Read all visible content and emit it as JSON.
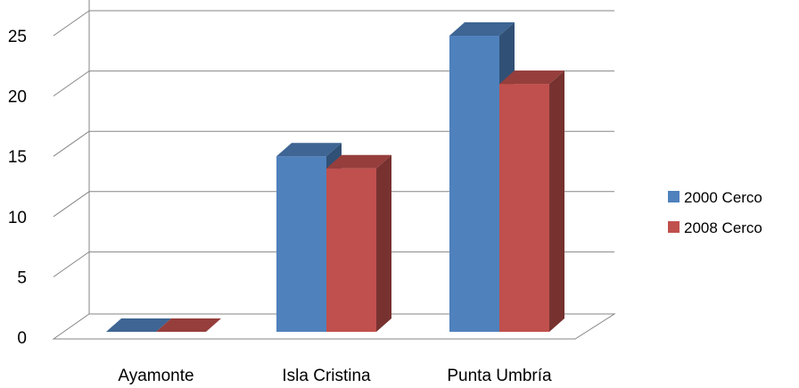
{
  "chart_data": {
    "type": "bar",
    "style": "3d-clustered-column",
    "categories": [
      "Ayamonte",
      "Isla Cristina",
      "Punta Umbría"
    ],
    "series": [
      {
        "name": "2000 Cerco",
        "values": [
          0,
          15,
          25
        ],
        "color": "#4F81BD"
      },
      {
        "name": "2008 Cerco",
        "values": [
          0,
          14,
          21
        ],
        "color": "#C0504D"
      }
    ],
    "yticks": [
      0,
      5,
      10,
      15,
      20,
      25
    ],
    "ylim": [
      0,
      30
    ],
    "grid": true,
    "legend_position": "right",
    "title": "",
    "xlabel": "",
    "ylabel": ""
  }
}
